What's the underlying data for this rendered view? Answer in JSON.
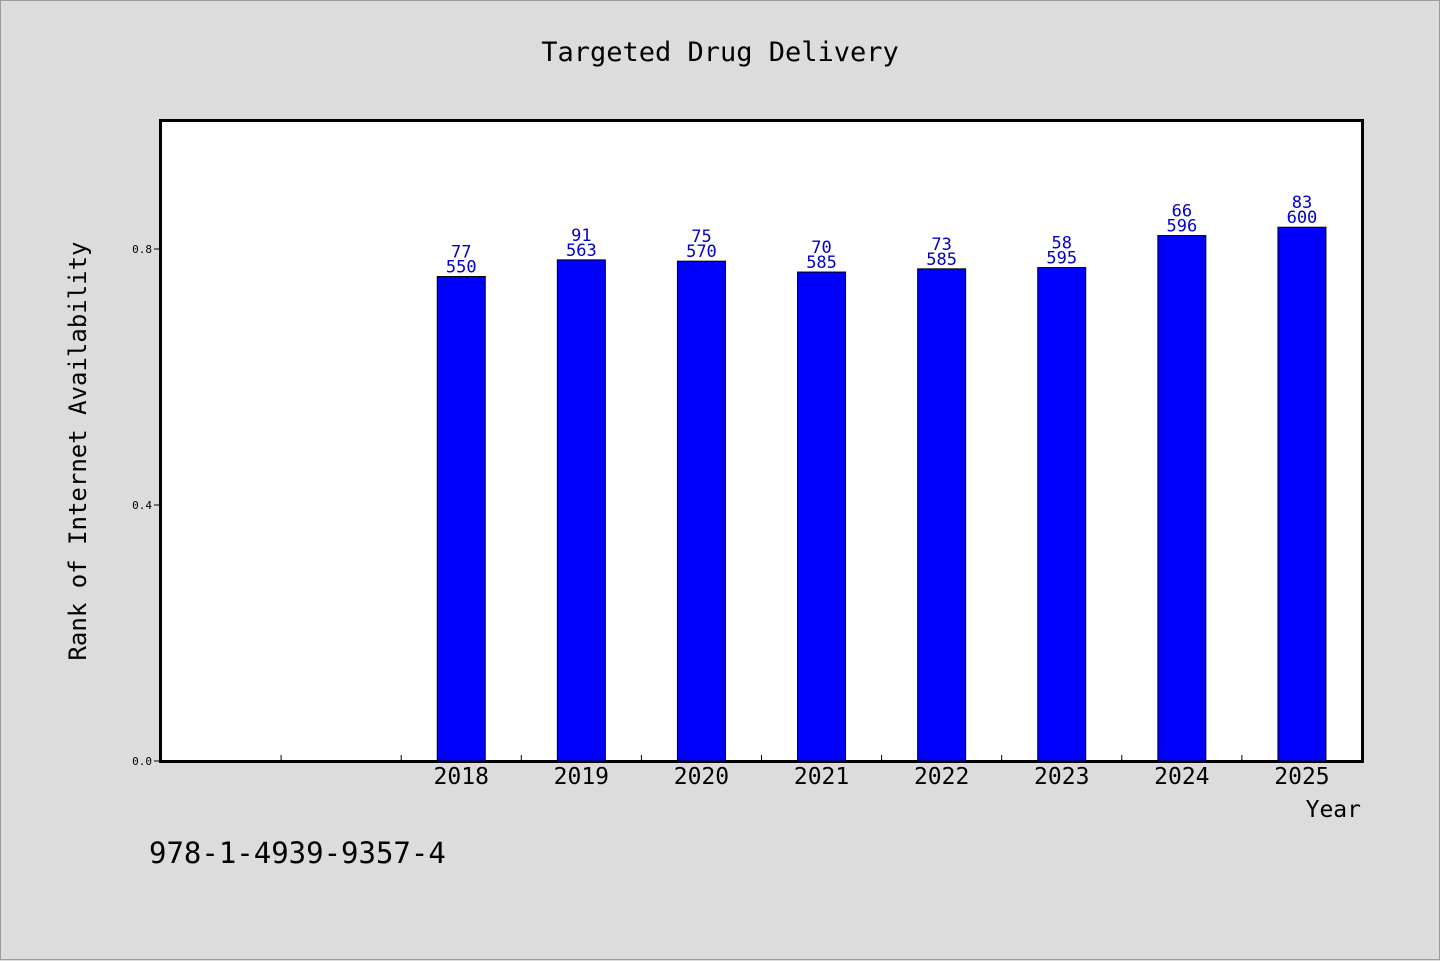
{
  "chart_data": {
    "type": "bar",
    "title": "Targeted Drug Delivery",
    "xlabel": "Year",
    "ylabel": "Rank of Internet Availability",
    "x_slots": 10,
    "categories": [
      "2018",
      "2019",
      "2020",
      "2021",
      "2022",
      "2023",
      "2024",
      "2025"
    ],
    "values": [
      0.757,
      0.783,
      0.781,
      0.764,
      0.769,
      0.771,
      0.821,
      0.834
    ],
    "labels_top": [
      "77",
      "91",
      "75",
      "70",
      "73",
      "58",
      "66",
      "83"
    ],
    "labels_bottom": [
      "550",
      "563",
      "570",
      "585",
      "585",
      "595",
      "596",
      "600"
    ],
    "ylim": [
      0,
      1.0
    ],
    "yticks": [
      0.0,
      0.4,
      0.8
    ],
    "ytick_labels": [
      "0.0",
      "0.4",
      "0.8"
    ],
    "grid": false,
    "bar_color": "#0000ff",
    "label_color": "#0000c8"
  },
  "footer": {
    "isbn": "978-1-4939-9357-4"
  }
}
